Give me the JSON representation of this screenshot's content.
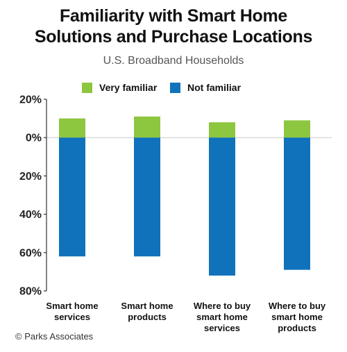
{
  "chart_data": {
    "type": "bar",
    "stacked": "diverging",
    "title": "Familiarity  with Smart Home\nSolutions and Purchase Locations",
    "subtitle": "U.S. Broadband Households",
    "categories": [
      [
        "Smart home",
        "services"
      ],
      [
        "Smart home",
        "products"
      ],
      [
        "Where to buy",
        "smart home",
        "services"
      ],
      [
        "Where to buy",
        "smart home",
        "products"
      ]
    ],
    "series": [
      {
        "name": "Very familiar",
        "color": "#8dc63f",
        "values": [
          10,
          11,
          8,
          9
        ]
      },
      {
        "name": "Not familiar",
        "color": "#0f72bb",
        "values": [
          -62,
          -62,
          -72,
          -69
        ]
      }
    ],
    "y_ticks": [
      20,
      0,
      -20,
      -40,
      -60,
      -80
    ],
    "y_tick_labels": [
      "20%",
      "0%",
      "20%",
      "40%",
      "60%",
      "80%"
    ],
    "ylim": [
      -80,
      20
    ],
    "grid": false,
    "legend_position": "top-center",
    "source": "© Parks Associates"
  }
}
